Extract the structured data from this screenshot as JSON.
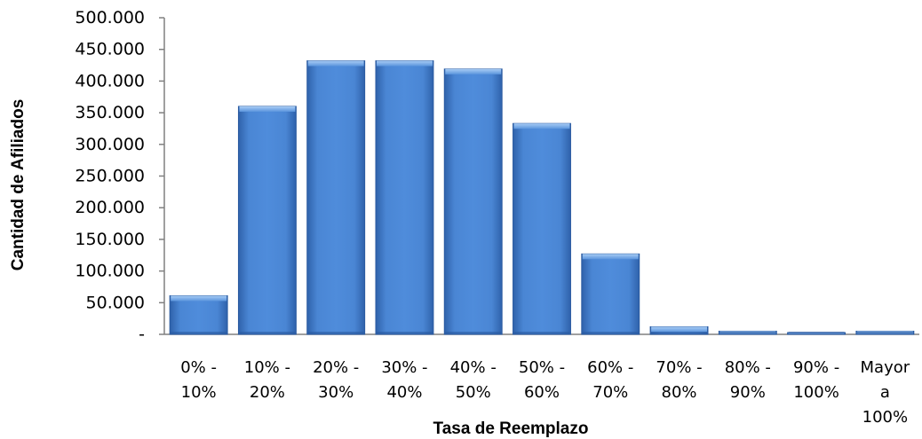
{
  "chart_data": {
    "type": "bar",
    "title": "",
    "xlabel": "Tasa de Reemplazo",
    "ylabel": "Cantidad de Afiliados",
    "ylim": [
      0,
      500000
    ],
    "yticks": [
      "-",
      "50.000",
      "100.000",
      "150.000",
      "200.000",
      "250.000",
      "300.000",
      "350.000",
      "400.000",
      "450.000",
      "500.000"
    ],
    "categories": [
      [
        "0% -",
        "10%"
      ],
      [
        "10% -",
        "20%"
      ],
      [
        "20% -",
        "30%"
      ],
      [
        "30% -",
        "40%"
      ],
      [
        "40% -",
        "50%"
      ],
      [
        "50% -",
        "60%"
      ],
      [
        "60% -",
        "70%"
      ],
      [
        "70% -",
        "80%"
      ],
      [
        "80% -",
        "90%"
      ],
      [
        "90% -",
        "100%"
      ],
      [
        "Mayor",
        "a",
        "100%"
      ]
    ],
    "values": [
      61000,
      360000,
      432000,
      432000,
      419000,
      333000,
      127000,
      12000,
      5000,
      2000,
      5000
    ],
    "grid": false,
    "legend": "none",
    "colors": {
      "bar": "#4a86d4",
      "bar_dark": "#2a5aa0",
      "bar_light": "#8db8ee",
      "axis": "#808080"
    }
  }
}
